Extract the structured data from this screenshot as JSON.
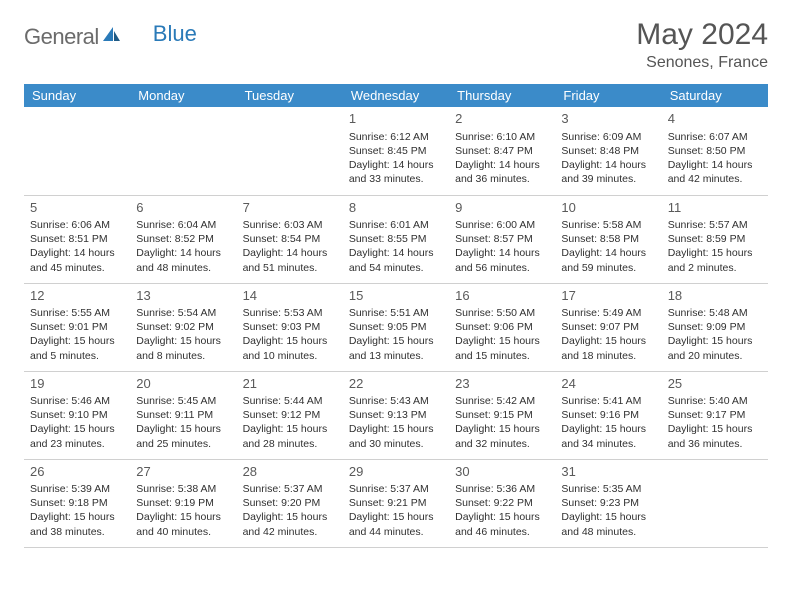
{
  "logo": {
    "gray": "General",
    "blue": "Blue"
  },
  "title": "May 2024",
  "subtitle": "Senones, France",
  "header_color": "#3b8bc9",
  "row_divider_color": "#3b8bc9",
  "days": [
    "Sunday",
    "Monday",
    "Tuesday",
    "Wednesday",
    "Thursday",
    "Friday",
    "Saturday"
  ],
  "weeks": [
    [
      null,
      null,
      null,
      {
        "n": "1",
        "sr": "6:12 AM",
        "ss": "8:45 PM",
        "dl": "14 hours and 33 minutes."
      },
      {
        "n": "2",
        "sr": "6:10 AM",
        "ss": "8:47 PM",
        "dl": "14 hours and 36 minutes."
      },
      {
        "n": "3",
        "sr": "6:09 AM",
        "ss": "8:48 PM",
        "dl": "14 hours and 39 minutes."
      },
      {
        "n": "4",
        "sr": "6:07 AM",
        "ss": "8:50 PM",
        "dl": "14 hours and 42 minutes."
      }
    ],
    [
      {
        "n": "5",
        "sr": "6:06 AM",
        "ss": "8:51 PM",
        "dl": "14 hours and 45 minutes."
      },
      {
        "n": "6",
        "sr": "6:04 AM",
        "ss": "8:52 PM",
        "dl": "14 hours and 48 minutes."
      },
      {
        "n": "7",
        "sr": "6:03 AM",
        "ss": "8:54 PM",
        "dl": "14 hours and 51 minutes."
      },
      {
        "n": "8",
        "sr": "6:01 AM",
        "ss": "8:55 PM",
        "dl": "14 hours and 54 minutes."
      },
      {
        "n": "9",
        "sr": "6:00 AM",
        "ss": "8:57 PM",
        "dl": "14 hours and 56 minutes."
      },
      {
        "n": "10",
        "sr": "5:58 AM",
        "ss": "8:58 PM",
        "dl": "14 hours and 59 minutes."
      },
      {
        "n": "11",
        "sr": "5:57 AM",
        "ss": "8:59 PM",
        "dl": "15 hours and 2 minutes."
      }
    ],
    [
      {
        "n": "12",
        "sr": "5:55 AM",
        "ss": "9:01 PM",
        "dl": "15 hours and 5 minutes."
      },
      {
        "n": "13",
        "sr": "5:54 AM",
        "ss": "9:02 PM",
        "dl": "15 hours and 8 minutes."
      },
      {
        "n": "14",
        "sr": "5:53 AM",
        "ss": "9:03 PM",
        "dl": "15 hours and 10 minutes."
      },
      {
        "n": "15",
        "sr": "5:51 AM",
        "ss": "9:05 PM",
        "dl": "15 hours and 13 minutes."
      },
      {
        "n": "16",
        "sr": "5:50 AM",
        "ss": "9:06 PM",
        "dl": "15 hours and 15 minutes."
      },
      {
        "n": "17",
        "sr": "5:49 AM",
        "ss": "9:07 PM",
        "dl": "15 hours and 18 minutes."
      },
      {
        "n": "18",
        "sr": "5:48 AM",
        "ss": "9:09 PM",
        "dl": "15 hours and 20 minutes."
      }
    ],
    [
      {
        "n": "19",
        "sr": "5:46 AM",
        "ss": "9:10 PM",
        "dl": "15 hours and 23 minutes."
      },
      {
        "n": "20",
        "sr": "5:45 AM",
        "ss": "9:11 PM",
        "dl": "15 hours and 25 minutes."
      },
      {
        "n": "21",
        "sr": "5:44 AM",
        "ss": "9:12 PM",
        "dl": "15 hours and 28 minutes."
      },
      {
        "n": "22",
        "sr": "5:43 AM",
        "ss": "9:13 PM",
        "dl": "15 hours and 30 minutes."
      },
      {
        "n": "23",
        "sr": "5:42 AM",
        "ss": "9:15 PM",
        "dl": "15 hours and 32 minutes."
      },
      {
        "n": "24",
        "sr": "5:41 AM",
        "ss": "9:16 PM",
        "dl": "15 hours and 34 minutes."
      },
      {
        "n": "25",
        "sr": "5:40 AM",
        "ss": "9:17 PM",
        "dl": "15 hours and 36 minutes."
      }
    ],
    [
      {
        "n": "26",
        "sr": "5:39 AM",
        "ss": "9:18 PM",
        "dl": "15 hours and 38 minutes."
      },
      {
        "n": "27",
        "sr": "5:38 AM",
        "ss": "9:19 PM",
        "dl": "15 hours and 40 minutes."
      },
      {
        "n": "28",
        "sr": "5:37 AM",
        "ss": "9:20 PM",
        "dl": "15 hours and 42 minutes."
      },
      {
        "n": "29",
        "sr": "5:37 AM",
        "ss": "9:21 PM",
        "dl": "15 hours and 44 minutes."
      },
      {
        "n": "30",
        "sr": "5:36 AM",
        "ss": "9:22 PM",
        "dl": "15 hours and 46 minutes."
      },
      {
        "n": "31",
        "sr": "5:35 AM",
        "ss": "9:23 PM",
        "dl": "15 hours and 48 minutes."
      },
      null
    ]
  ],
  "labels": {
    "sunrise": "Sunrise: ",
    "sunset": "Sunset: ",
    "daylight": "Daylight: "
  }
}
